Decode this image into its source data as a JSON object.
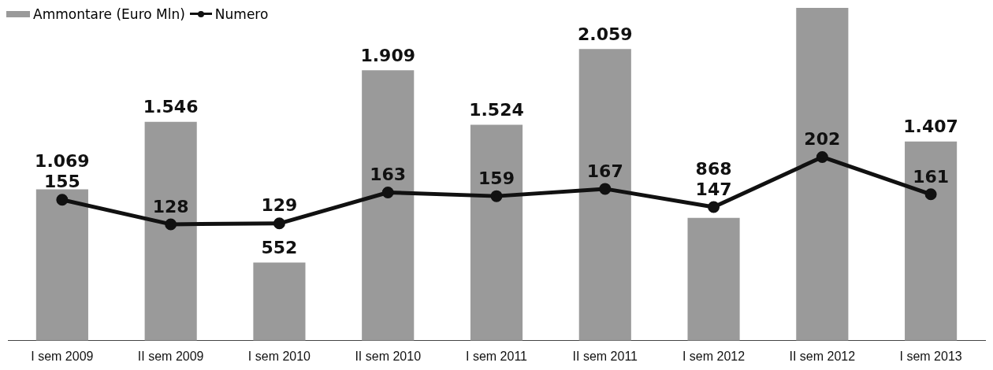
{
  "chart_data": {
    "type": "bar",
    "categories": [
      "I sem 2009",
      "II sem 2009",
      "I sem 2010",
      "II sem 2010",
      "I sem 2011",
      "II sem 2011",
      "I sem 2012",
      "II sem 2012",
      "I sem 2013"
    ],
    "series": [
      {
        "name": "Ammontare (Euro Mln)",
        "axis": "y",
        "color": "#9a9a9a",
        "values": [
          1069,
          1546,
          552,
          1909,
          1524,
          2059,
          868,
          2350,
          1407
        ],
        "value_labels": [
          "1.069",
          "1.546",
          "552",
          "1.909",
          "1.524",
          "2.059",
          "868",
          null,
          "1.407"
        ]
      },
      {
        "name": "Numero",
        "type": "line",
        "axis": "y2",
        "color": "#111111",
        "values": [
          155,
          128,
          129,
          163,
          159,
          167,
          147,
          202,
          161
        ],
        "value_labels": [
          "155",
          "128",
          "129",
          "163",
          "159",
          "167",
          "147",
          "202",
          "161"
        ]
      }
    ],
    "ylim": [
      0,
      2350
    ],
    "y2lim": [
      0,
      366
    ],
    "legend": "top left",
    "marker": "circle",
    "line_style": "solid",
    "tick_labels": "x"
  }
}
